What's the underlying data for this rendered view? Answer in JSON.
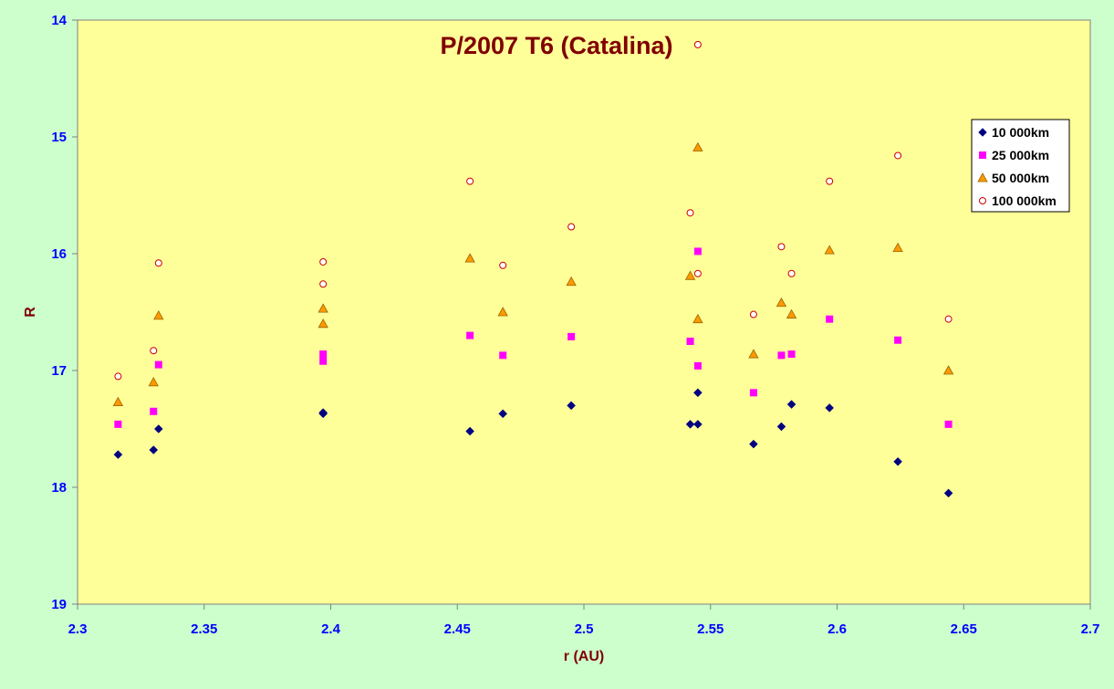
{
  "chart_data": {
    "type": "scatter",
    "title": "P/2007 T6 (Catalina)",
    "xlabel": "r (AU)",
    "ylabel": "R",
    "xlim": [
      2.3,
      2.7
    ],
    "ylim": [
      14,
      19
    ],
    "y_inverted": true,
    "x_ticks": [
      "2.3",
      "2.35",
      "2.4",
      "2.45",
      "2.5",
      "2.55",
      "2.6",
      "2.65",
      "2.7"
    ],
    "y_ticks": [
      "14",
      "15",
      "16",
      "17",
      "18",
      "19"
    ],
    "grid": false,
    "legend_position": "top-right",
    "colors": {
      "background": "#ccffcc",
      "plot_area": "#ffff99",
      "title": "#800000",
      "axis_labels": "#800000",
      "tick_labels": "#0000ff"
    },
    "series": [
      {
        "name": "10 000km",
        "marker": "diamond",
        "color": "#000080",
        "points": [
          [
            2.316,
            17.72
          ],
          [
            2.33,
            17.68
          ],
          [
            2.332,
            17.5
          ],
          [
            2.397,
            17.36
          ],
          [
            2.397,
            17.37
          ],
          [
            2.455,
            17.52
          ],
          [
            2.468,
            17.37
          ],
          [
            2.495,
            17.3
          ],
          [
            2.542,
            17.46
          ],
          [
            2.545,
            17.46
          ],
          [
            2.545,
            17.19
          ],
          [
            2.567,
            17.63
          ],
          [
            2.578,
            17.48
          ],
          [
            2.582,
            17.29
          ],
          [
            2.597,
            17.32
          ],
          [
            2.624,
            17.78
          ],
          [
            2.644,
            18.05
          ]
        ]
      },
      {
        "name": "25 000km",
        "marker": "square",
        "color": "#ff00ff",
        "points": [
          [
            2.316,
            17.46
          ],
          [
            2.33,
            17.35
          ],
          [
            2.332,
            16.95
          ],
          [
            2.397,
            16.86
          ],
          [
            2.397,
            16.92
          ],
          [
            2.455,
            16.7
          ],
          [
            2.468,
            16.87
          ],
          [
            2.495,
            16.71
          ],
          [
            2.542,
            16.75
          ],
          [
            2.545,
            16.96
          ],
          [
            2.545,
            15.98
          ],
          [
            2.567,
            17.19
          ],
          [
            2.578,
            16.87
          ],
          [
            2.582,
            16.86
          ],
          [
            2.597,
            16.56
          ],
          [
            2.624,
            16.74
          ],
          [
            2.644,
            17.46
          ]
        ]
      },
      {
        "name": "50 000km",
        "marker": "triangle",
        "color": "#ff9900",
        "points": [
          [
            2.316,
            17.27
          ],
          [
            2.33,
            17.1
          ],
          [
            2.332,
            16.53
          ],
          [
            2.397,
            16.47
          ],
          [
            2.397,
            16.6
          ],
          [
            2.455,
            16.04
          ],
          [
            2.468,
            16.5
          ],
          [
            2.495,
            16.24
          ],
          [
            2.542,
            16.19
          ],
          [
            2.545,
            16.56
          ],
          [
            2.545,
            15.09
          ],
          [
            2.567,
            16.86
          ],
          [
            2.578,
            16.42
          ],
          [
            2.582,
            16.52
          ],
          [
            2.597,
            15.97
          ],
          [
            2.624,
            15.95
          ],
          [
            2.644,
            17.0
          ]
        ]
      },
      {
        "name": "100 000km",
        "marker": "circle",
        "color": "#cc0000",
        "points": [
          [
            2.316,
            17.05
          ],
          [
            2.33,
            16.83
          ],
          [
            2.332,
            16.08
          ],
          [
            2.397,
            16.07
          ],
          [
            2.397,
            16.26
          ],
          [
            2.455,
            15.38
          ],
          [
            2.468,
            16.1
          ],
          [
            2.495,
            15.77
          ],
          [
            2.542,
            15.65
          ],
          [
            2.545,
            16.17
          ],
          [
            2.545,
            14.21
          ],
          [
            2.567,
            16.52
          ],
          [
            2.578,
            15.94
          ],
          [
            2.582,
            16.17
          ],
          [
            2.597,
            15.38
          ],
          [
            2.624,
            15.16
          ],
          [
            2.644,
            16.56
          ]
        ]
      }
    ]
  }
}
